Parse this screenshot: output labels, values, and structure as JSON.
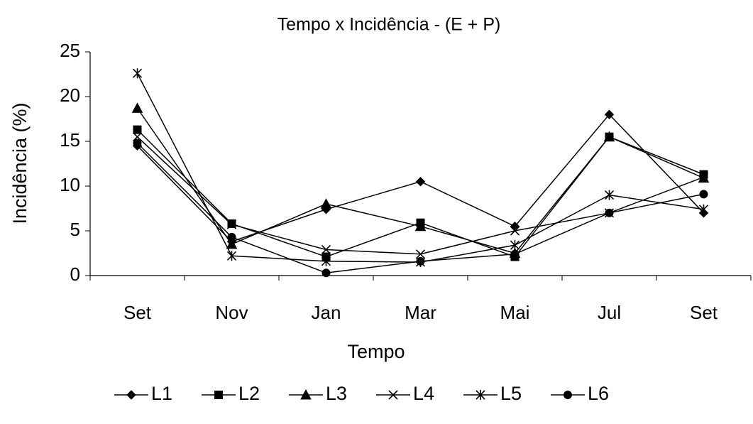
{
  "chart_data": {
    "type": "line",
    "title": "Tempo x Incidência - (E + P)",
    "x_label": "Tempo",
    "y_label": "Incidência (%)",
    "categories": [
      "Set",
      "Nov",
      "Jan",
      "Mar",
      "Mai",
      "Jul",
      "Set"
    ],
    "ylim": [
      0,
      25
    ],
    "yticks": [
      0,
      5,
      10,
      15,
      20,
      25
    ],
    "grid": false,
    "legend": "bottom",
    "series": [
      {
        "name": "L1",
        "color": "#000000",
        "marker": "diamond",
        "values": [
          14.5,
          3.8,
          7.4,
          10.5,
          5.5,
          18.0,
          7.0
        ]
      },
      {
        "name": "L2",
        "color": "#000000",
        "marker": "square",
        "values": [
          16.3,
          5.8,
          2.1,
          5.9,
          2.1,
          15.5,
          11.3
        ]
      },
      {
        "name": "L3",
        "color": "#000000",
        "marker": "triangle",
        "values": [
          18.7,
          3.5,
          8.0,
          5.5,
          2.5,
          15.5,
          10.9
        ]
      },
      {
        "name": "L4",
        "color": "#000000",
        "marker": "x",
        "values": [
          15.5,
          5.7,
          2.9,
          2.4,
          5.0,
          7.0,
          11.0
        ]
      },
      {
        "name": "L5",
        "color": "#000000",
        "marker": "star",
        "values": [
          22.6,
          2.2,
          1.6,
          1.5,
          3.4,
          9.0,
          7.4
        ]
      },
      {
        "name": "L6",
        "color": "#000000",
        "marker": "circle",
        "values": [
          14.8,
          4.3,
          0.3,
          1.6,
          2.4,
          7.0,
          9.1
        ]
      }
    ]
  }
}
